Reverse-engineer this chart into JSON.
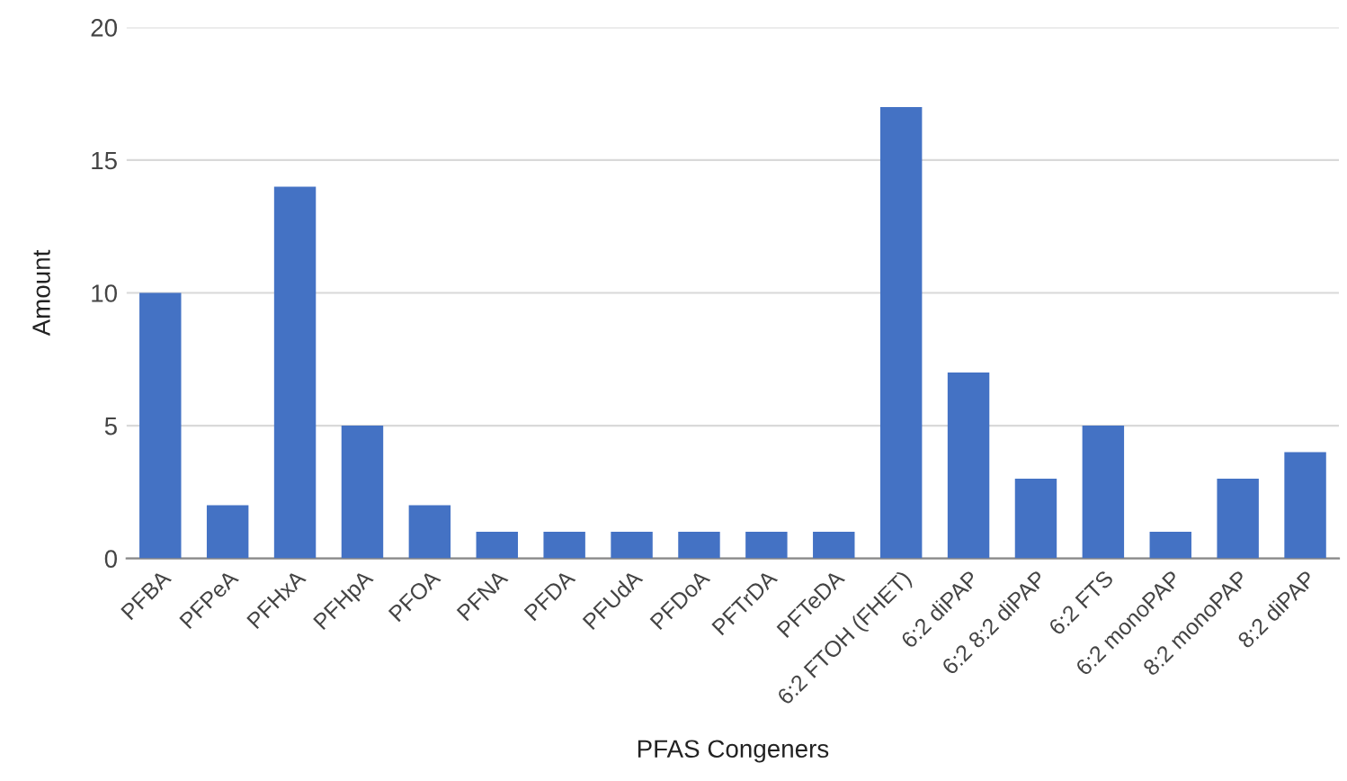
{
  "chart_data": {
    "type": "bar",
    "xlabel": "PFAS Congeners",
    "ylabel": "Amount",
    "categories": [
      "PFBA",
      "PFPeA",
      "PFHxA",
      "PFHpA",
      "PFOA",
      "PFNA",
      "PFDA",
      "PFUdA",
      "PFDoA",
      "PFTrDA",
      "PFTeDA",
      "6:2 FTOH (FHET)",
      "6:2 diPAP",
      "6:2 8:2 diPAP",
      "6:2 FTS",
      "6:2 monoPAP",
      "8:2 monoPAP",
      "8:2 diPAP"
    ],
    "values": [
      10,
      2,
      14,
      5,
      2,
      1,
      1,
      1,
      1,
      1,
      1,
      17,
      7,
      3,
      5,
      1,
      3,
      4
    ],
    "color": "#4472c4",
    "ylim": [
      0,
      20
    ],
    "yticks": [
      0,
      5,
      10,
      15,
      20
    ],
    "grid": "y",
    "legend": false
  }
}
